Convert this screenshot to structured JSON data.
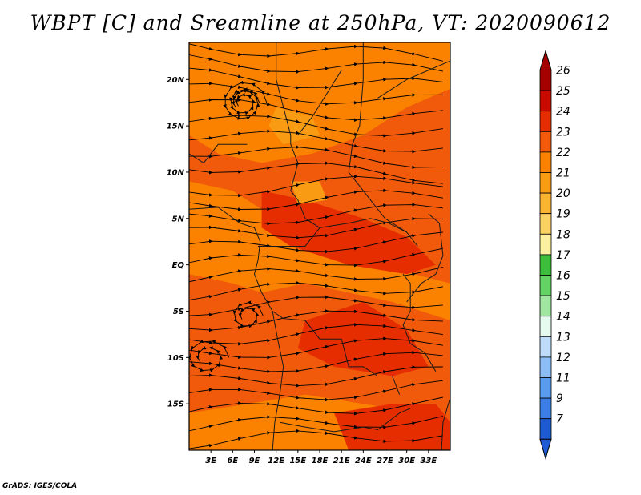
{
  "title": "WBPT [C] and Sreamline at 250hPa, VT: 2020090612",
  "credit": "GrADS: IGES/COLA",
  "map": {
    "lon_range": [
      0,
      36
    ],
    "lat_range": [
      -20,
      24
    ],
    "x_ticks": [
      {
        "value": 3,
        "label": "3E"
      },
      {
        "value": 6,
        "label": "6E"
      },
      {
        "value": 9,
        "label": "9E"
      },
      {
        "value": 12,
        "label": "12E"
      },
      {
        "value": 15,
        "label": "15E"
      },
      {
        "value": 18,
        "label": "18E"
      },
      {
        "value": 21,
        "label": "21E"
      },
      {
        "value": 24,
        "label": "24E"
      },
      {
        "value": 27,
        "label": "27E"
      },
      {
        "value": 30,
        "label": "30E"
      },
      {
        "value": 33,
        "label": "33E"
      }
    ],
    "y_ticks": [
      {
        "value": 20,
        "label": "20N"
      },
      {
        "value": 15,
        "label": "15N"
      },
      {
        "value": 10,
        "label": "10N"
      },
      {
        "value": 5,
        "label": "5N"
      },
      {
        "value": 0,
        "label": "EQ"
      },
      {
        "value": -5,
        "label": "5S"
      },
      {
        "value": -10,
        "label": "10S"
      },
      {
        "value": -15,
        "label": "15S"
      }
    ]
  },
  "colorbar": {
    "levels": [
      "26",
      "25",
      "24",
      "23",
      "22",
      "21",
      "20",
      "19",
      "18",
      "17",
      "16",
      "15",
      "14",
      "13",
      "12",
      "11",
      "9",
      "7"
    ],
    "colors": [
      "#a50000",
      "#c80a00",
      "#e62d00",
      "#f05a0a",
      "#fa8200",
      "#fa9b14",
      "#fab432",
      "#fad264",
      "#faf0a0",
      "#3cbe3c",
      "#64d264",
      "#a0e6a0",
      "#e6faf0",
      "#bedcfa",
      "#8cbef5",
      "#5a9bf0",
      "#3c7de6",
      "#1e5ad2"
    ],
    "top_color": "#a50000",
    "bottom_color": "#1e5ad2"
  },
  "field_colors": {
    "c22": "#fa8200",
    "c23": "#f05a0a",
    "c24": "#e62d00",
    "c21": "#fa9b14"
  }
}
